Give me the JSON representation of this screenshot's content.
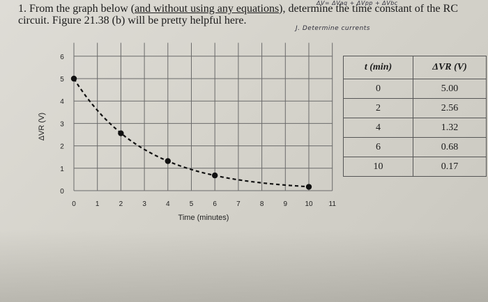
{
  "problem": {
    "line1_a": "1. From the graph below (",
    "line1_ul": "and without using any equations",
    "line1_b": "), determine the time constant of the RC",
    "line2": "circuit. Figure 21.38 (b) will be pretty helpful here."
  },
  "handwriting": {
    "top_note": "ΔV= ΔVaq + ΔVpp + ΔVbc",
    "side_note": "J. Determine currents"
  },
  "chart_data": {
    "type": "scatter",
    "xlabel": "Time (minutes)",
    "ylabel": "ΔVR (V)",
    "xlim": [
      0,
      11
    ],
    "ylim": [
      0,
      6
    ],
    "x_ticks": [
      "0",
      "1",
      "2",
      "3",
      "4",
      "5",
      "6",
      "7",
      "8",
      "9",
      "10",
      "11"
    ],
    "y_ticks": [
      "0",
      "1",
      "2",
      "3",
      "4",
      "5",
      "6"
    ],
    "grid": true,
    "series": [
      {
        "x": [
          0,
          2,
          4,
          6,
          10
        ],
        "y": [
          5.0,
          2.56,
          1.32,
          0.68,
          0.17
        ]
      }
    ]
  },
  "table": {
    "headers": [
      "t (min)",
      "ΔVR (V)"
    ],
    "rows": [
      [
        "0",
        "5.00"
      ],
      [
        "2",
        "2.56"
      ],
      [
        "4",
        "1.32"
      ],
      [
        "6",
        "0.68"
      ],
      [
        "10",
        "0.17"
      ]
    ]
  }
}
